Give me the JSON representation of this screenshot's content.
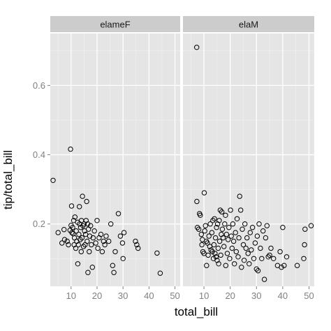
{
  "chart_data": {
    "type": "scatter",
    "xlabel": "total_bill",
    "ylabel": "tip/total_bill",
    "x_ticks": [
      10,
      20,
      30,
      40,
      50
    ],
    "y_ticks": [
      0.2,
      0.4,
      0.6
    ],
    "x_tick_labels": [
      "10",
      "20",
      "30",
      "40",
      "50"
    ],
    "y_tick_labels": [
      "0.2",
      "0.4",
      "0.6"
    ],
    "xlim": [
      2.0,
      52.0
    ],
    "ylim": [
      0.02,
      0.75
    ],
    "grid": true,
    "panels": [
      {
        "label": "elameF",
        "points": [
          [
            3.07,
            0.326
          ],
          [
            5.0,
            0.175
          ],
          [
            6.5,
            0.145
          ],
          [
            7.3,
            0.184
          ],
          [
            7.5,
            0.155
          ],
          [
            8.5,
            0.15
          ],
          [
            9.0,
            0.14
          ],
          [
            9.6,
            0.182
          ],
          [
            9.8,
            0.416
          ],
          [
            10.0,
            0.196
          ],
          [
            10.2,
            0.252
          ],
          [
            10.3,
            0.175
          ],
          [
            10.6,
            0.19
          ],
          [
            10.8,
            0.172
          ],
          [
            11.0,
            0.21
          ],
          [
            11.2,
            0.14
          ],
          [
            11.3,
            0.16
          ],
          [
            11.5,
            0.22
          ],
          [
            11.8,
            0.13
          ],
          [
            12.0,
            0.18
          ],
          [
            12.2,
            0.15
          ],
          [
            12.5,
            0.205
          ],
          [
            12.6,
            0.085
          ],
          [
            12.8,
            0.14
          ],
          [
            13.0,
            0.17
          ],
          [
            13.2,
            0.25
          ],
          [
            13.3,
            0.2
          ],
          [
            13.5,
            0.155
          ],
          [
            13.7,
            0.19
          ],
          [
            13.9,
            0.12
          ],
          [
            14.0,
            0.21
          ],
          [
            14.2,
            0.16
          ],
          [
            14.4,
            0.28
          ],
          [
            14.6,
            0.195
          ],
          [
            14.8,
            0.135
          ],
          [
            15.0,
            0.2
          ],
          [
            15.2,
            0.18
          ],
          [
            15.4,
            0.14
          ],
          [
            15.6,
            0.17
          ],
          [
            15.8,
            0.21
          ],
          [
            16.0,
            0.265
          ],
          [
            16.2,
            0.15
          ],
          [
            16.4,
            0.2
          ],
          [
            16.5,
            0.06
          ],
          [
            16.7,
            0.185
          ],
          [
            17.0,
            0.12
          ],
          [
            17.2,
            0.165
          ],
          [
            17.5,
            0.195
          ],
          [
            17.8,
            0.14
          ],
          [
            18.2,
            0.075
          ],
          [
            18.5,
            0.16
          ],
          [
            19.0,
            0.18
          ],
          [
            19.5,
            0.145
          ],
          [
            20.0,
            0.21
          ],
          [
            20.3,
            0.13
          ],
          [
            20.8,
            0.16
          ],
          [
            21.5,
            0.17
          ],
          [
            22.0,
            0.12
          ],
          [
            22.5,
            0.15
          ],
          [
            23.0,
            0.14
          ],
          [
            23.5,
            0.165
          ],
          [
            24.5,
            0.15
          ],
          [
            25.3,
            0.2
          ],
          [
            26.0,
            0.08
          ],
          [
            26.5,
            0.06
          ],
          [
            27.0,
            0.12
          ],
          [
            28.2,
            0.23
          ],
          [
            29.0,
            0.165
          ],
          [
            29.8,
            0.145
          ],
          [
            30.0,
            0.1
          ],
          [
            30.4,
            0.175
          ],
          [
            34.8,
            0.15
          ],
          [
            35.3,
            0.14
          ],
          [
            35.8,
            0.13
          ],
          [
            43.1,
            0.116
          ],
          [
            44.3,
            0.058
          ]
        ]
      },
      {
        "label": "elaM",
        "points": [
          [
            7.25,
            0.71
          ],
          [
            7.3,
            0.265
          ],
          [
            7.5,
            0.19
          ],
          [
            8.0,
            0.185
          ],
          [
            8.3,
            0.23
          ],
          [
            8.6,
            0.225
          ],
          [
            9.0,
            0.17
          ],
          [
            9.2,
            0.14
          ],
          [
            9.4,
            0.155
          ],
          [
            9.6,
            0.12
          ],
          [
            10.0,
            0.115
          ],
          [
            10.1,
            0.29
          ],
          [
            10.3,
            0.18
          ],
          [
            10.6,
            0.195
          ],
          [
            10.9,
            0.15
          ],
          [
            11.0,
            0.08
          ],
          [
            11.3,
            0.145
          ],
          [
            11.6,
            0.11
          ],
          [
            11.9,
            0.165
          ],
          [
            12.2,
            0.135
          ],
          [
            12.4,
            0.2
          ],
          [
            12.7,
            0.125
          ],
          [
            13.0,
            0.175
          ],
          [
            13.2,
            0.12
          ],
          [
            13.4,
            0.21
          ],
          [
            13.6,
            0.1
          ],
          [
            13.8,
            0.14
          ],
          [
            14.0,
            0.215
          ],
          [
            14.2,
            0.115
          ],
          [
            14.4,
            0.16
          ],
          [
            14.6,
            0.105
          ],
          [
            14.8,
            0.19
          ],
          [
            15.0,
            0.095
          ],
          [
            15.2,
            0.2
          ],
          [
            15.4,
            0.13
          ],
          [
            15.6,
            0.085
          ],
          [
            15.8,
            0.21
          ],
          [
            16.0,
            0.15
          ],
          [
            16.2,
            0.24
          ],
          [
            16.4,
            0.11
          ],
          [
            16.6,
            0.17
          ],
          [
            16.8,
            0.235
          ],
          [
            17.0,
            0.185
          ],
          [
            17.3,
            0.16
          ],
          [
            17.6,
            0.135
          ],
          [
            17.9,
            0.2
          ],
          [
            18.2,
            0.225
          ],
          [
            18.3,
            0.08
          ],
          [
            18.6,
            0.17
          ],
          [
            18.9,
            0.115
          ],
          [
            19.2,
            0.155
          ],
          [
            19.5,
            0.19
          ],
          [
            19.8,
            0.1
          ],
          [
            20.1,
            0.24
          ],
          [
            20.4,
            0.165
          ],
          [
            20.7,
            0.13
          ],
          [
            21.0,
            0.2
          ],
          [
            21.3,
            0.15
          ],
          [
            21.6,
            0.085
          ],
          [
            22.0,
            0.175
          ],
          [
            22.3,
            0.12
          ],
          [
            22.6,
            0.215
          ],
          [
            23.0,
            0.105
          ],
          [
            23.3,
            0.16
          ],
          [
            23.6,
            0.28
          ],
          [
            24.0,
            0.24
          ],
          [
            24.3,
            0.075
          ],
          [
            24.6,
            0.185
          ],
          [
            25.0,
            0.14
          ],
          [
            25.3,
            0.095
          ],
          [
            25.6,
            0.2
          ],
          [
            26.0,
            0.13
          ],
          [
            26.4,
            0.16
          ],
          [
            26.8,
            0.115
          ],
          [
            27.2,
            0.085
          ],
          [
            27.6,
            0.175
          ],
          [
            28.0,
            0.125
          ],
          [
            28.5,
            0.19
          ],
          [
            29.0,
            0.1
          ],
          [
            29.5,
            0.145
          ],
          [
            30.0,
            0.07
          ],
          [
            30.3,
            0.165
          ],
          [
            30.6,
            0.065
          ],
          [
            31.0,
            0.2
          ],
          [
            31.5,
            0.13
          ],
          [
            32.0,
            0.1
          ],
          [
            32.5,
            0.18
          ],
          [
            33.0,
            0.04
          ],
          [
            33.5,
            0.16
          ],
          [
            34.0,
            0.195
          ],
          [
            34.5,
            0.105
          ],
          [
            35.0,
            0.11
          ],
          [
            35.5,
            0.13
          ],
          [
            36.5,
            0.1
          ],
          [
            38.0,
            0.08
          ],
          [
            39.0,
            0.12
          ],
          [
            39.5,
            0.075
          ],
          [
            40.0,
            0.19
          ],
          [
            40.5,
            0.08
          ],
          [
            41.5,
            0.105
          ],
          [
            45.5,
            0.08
          ],
          [
            48.0,
            0.1
          ],
          [
            48.3,
            0.14
          ],
          [
            48.5,
            0.185
          ],
          [
            50.8,
            0.195
          ]
        ]
      }
    ]
  }
}
